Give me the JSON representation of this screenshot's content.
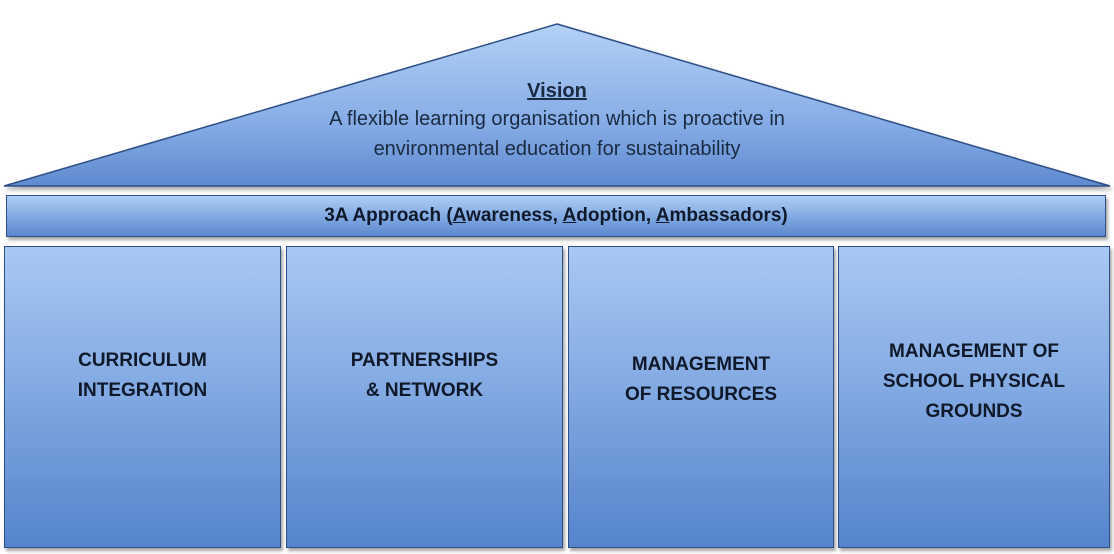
{
  "roof": {
    "title": "Vision",
    "line1": "A flexible learning organisation which is proactive in",
    "line2": "environmental education for sustainability"
  },
  "band": {
    "prefix": "3A Approach (",
    "a1": "A",
    "w1": "wareness, ",
    "a2": "A",
    "w2": "doption, ",
    "a3": "A",
    "w3": "mbassadors)"
  },
  "pillars": [
    "CURRICULUM\nINTEGRATION",
    "PARTNERSHIPS\n& NETWORK",
    "MANAGEMENT\nOF RESOURCES",
    "MANAGEMENT OF\nSCHOOL PHYSICAL\nGROUNDS"
  ],
  "colors": {
    "border": "#2d4f85",
    "fill_light": "#a9c8f2",
    "fill_dark": "#5584cc",
    "text": "#10192a"
  }
}
